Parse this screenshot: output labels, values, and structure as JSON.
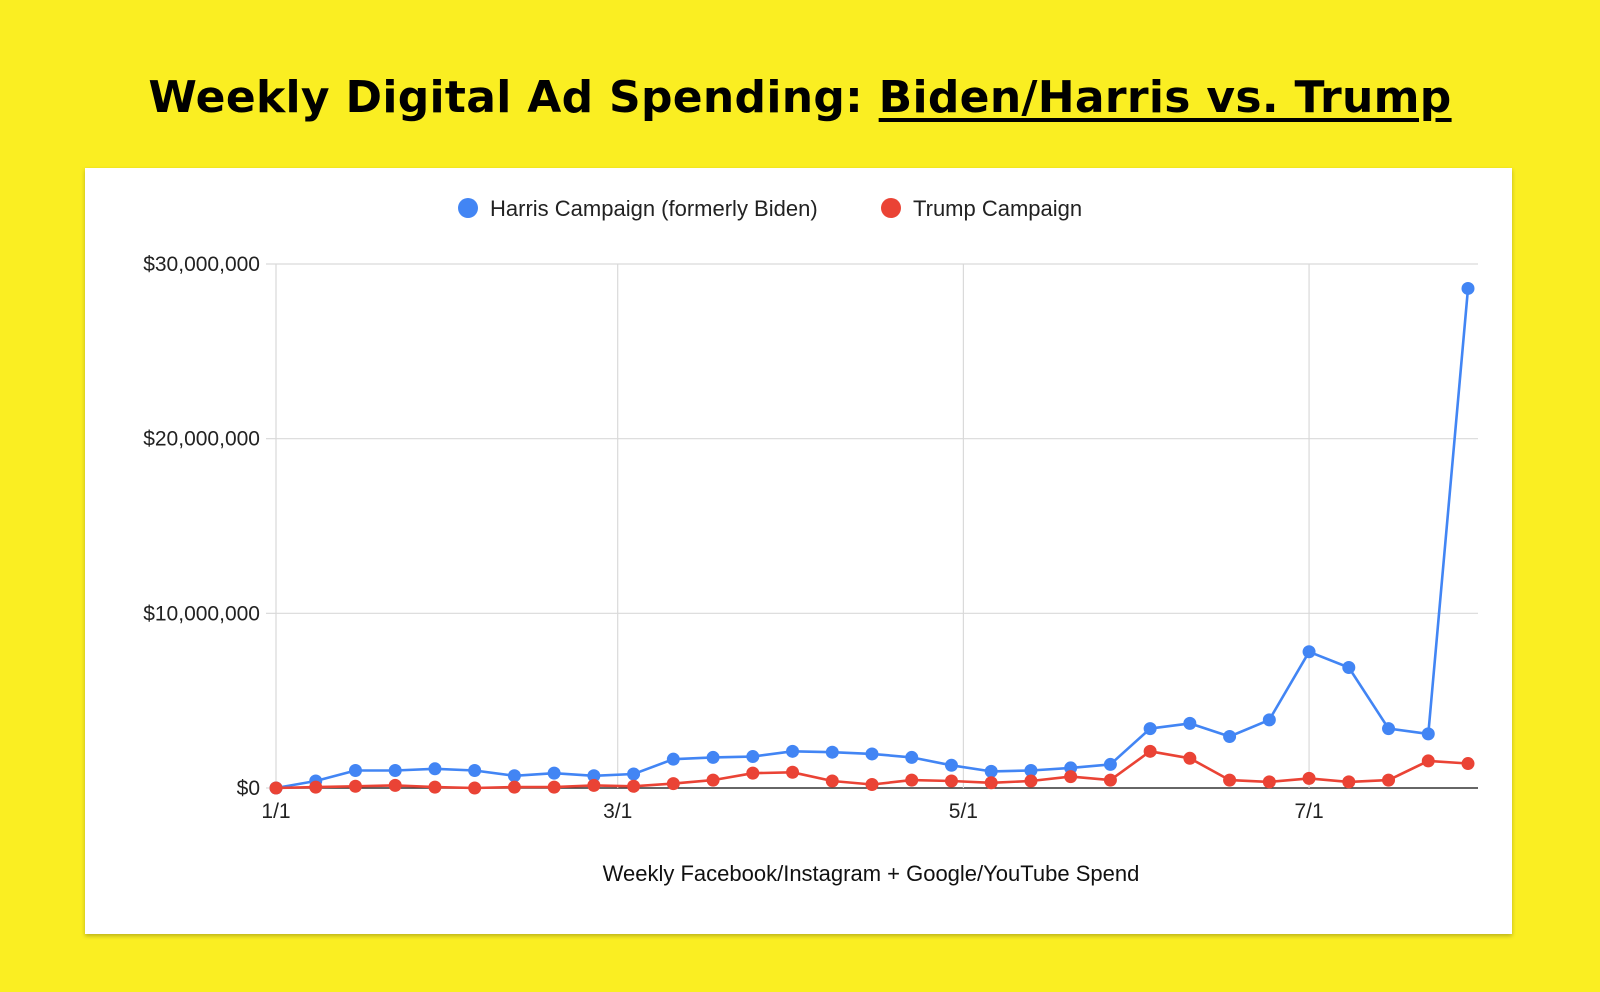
{
  "title": {
    "prefix": "Weekly Digital Ad Spending: ",
    "emphasis": "Biden/Harris vs. Trump"
  },
  "chart_data": {
    "type": "line",
    "title": "Weekly Digital Ad Spending: Biden/Harris vs. Trump",
    "xlabel": "Weekly Facebook/Instagram + Google/YouTube Spend",
    "ylabel": "",
    "ylim": [
      0,
      30000000
    ],
    "yticks": [
      0,
      10000000,
      20000000,
      30000000
    ],
    "ytick_labels": [
      "$0",
      "$10,000,000",
      "$20,000,000",
      "$30,000,000"
    ],
    "xticks": [
      "1/1",
      "3/1",
      "5/1",
      "7/1"
    ],
    "x_week_offset": [
      0,
      1,
      2,
      3,
      4,
      5,
      6,
      7,
      8,
      9,
      10,
      11,
      12,
      13,
      14,
      15,
      16,
      17,
      18,
      19,
      20,
      21,
      22,
      23,
      24,
      25,
      26,
      27,
      28,
      29,
      30
    ],
    "grid": true,
    "legend_position": "top",
    "series": [
      {
        "name": "Harris Campaign (formerly Biden)",
        "color": "#4285F4",
        "values": [
          0,
          400000,
          1000000,
          1000000,
          1100000,
          1000000,
          700000,
          850000,
          700000,
          800000,
          1650000,
          1750000,
          1800000,
          2100000,
          2050000,
          1950000,
          1750000,
          1300000,
          950000,
          1000000,
          1150000,
          1350000,
          3400000,
          3700000,
          2950000,
          3900000,
          7800000,
          6900000,
          3400000,
          3100000,
          28600000
        ]
      },
      {
        "name": "Trump Campaign",
        "color": "#EA4335",
        "values": [
          0,
          50000,
          100000,
          150000,
          50000,
          0,
          50000,
          50000,
          150000,
          100000,
          250000,
          450000,
          850000,
          900000,
          400000,
          200000,
          450000,
          400000,
          300000,
          400000,
          650000,
          450000,
          2100000,
          1700000,
          450000,
          350000,
          550000,
          350000,
          450000,
          1550000,
          1400000
        ]
      }
    ]
  }
}
